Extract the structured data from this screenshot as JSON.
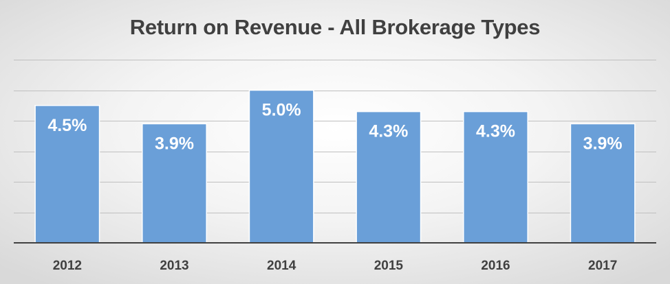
{
  "chart_data": {
    "type": "bar",
    "title": "Return on Revenue - All Brokerage Types",
    "categories": [
      "2012",
      "2013",
      "2014",
      "2015",
      "2016",
      "2017"
    ],
    "values": [
      4.5,
      3.9,
      5.0,
      4.3,
      4.3,
      3.9
    ],
    "data_labels": [
      "4.5%",
      "3.9%",
      "5.0%",
      "4.3%",
      "4.3%",
      "3.9%"
    ],
    "ylim": [
      0,
      6.0
    ],
    "gridlines": [
      0,
      1.0,
      2.0,
      3.0,
      4.0,
      5.0,
      6.0
    ],
    "grid": true,
    "legend": "none",
    "colors": {
      "bar": "#6a9fd8",
      "bar_border": "#ffffff",
      "grid": "#bfbfbf",
      "axis": "#404040",
      "label": "#ffffff",
      "tick": "#404040"
    }
  }
}
